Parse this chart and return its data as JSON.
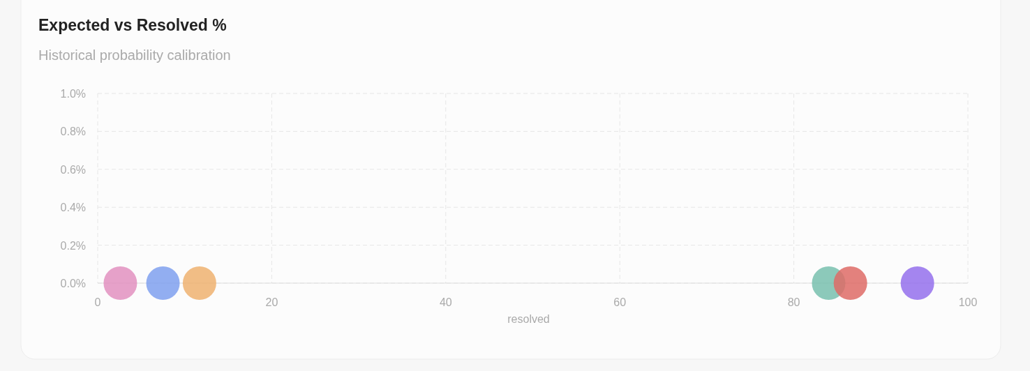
{
  "chart_data": {
    "type": "scatter",
    "title": "Expected vs Resolved %",
    "subtitle": "Historical probability calibration",
    "xlabel": "resolved",
    "x": [
      2.6,
      7.5,
      11.7,
      84,
      86.5,
      94.2
    ],
    "values": [
      0,
      0,
      0,
      0,
      0,
      0
    ],
    "colors": [
      "#e290c0",
      "#7fa0ee",
      "#eeb170",
      "#78c0ae",
      "#de6b66",
      "#9470ec"
    ],
    "xlim": [
      0,
      100
    ],
    "xticks": [
      0,
      20,
      40,
      60,
      80,
      100
    ],
    "ylim": [
      0,
      1
    ],
    "yticks": [
      {
        "value": 0,
        "label": "0.0%"
      },
      {
        "value": 0.2,
        "label": "0.2%"
      },
      {
        "value": 0.4,
        "label": "0.4%"
      },
      {
        "value": 0.6,
        "label": "0.6%"
      },
      {
        "value": 0.8,
        "label": "0.8%"
      },
      {
        "value": 1,
        "label": "1.0%"
      }
    ],
    "grid": true,
    "marker": "circle"
  }
}
